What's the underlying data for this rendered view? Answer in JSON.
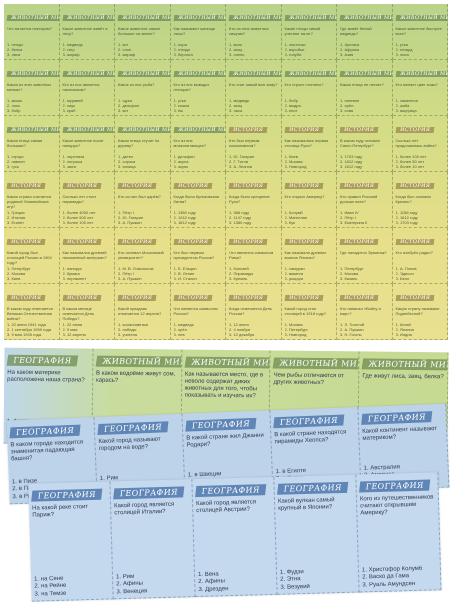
{
  "sheets": {
    "top": {
      "cells": [
        {
          "title": "ЖИВОТНЫЙ МИР",
          "question": "Что питается нектаром?",
          "answers": [
            "1. птицы",
            "2. белка",
            "3. лиса"
          ]
        },
        {
          "title": "ЖИВОТНЫЙ МИР",
          "question": "Какое животное живёт в лесу?",
          "answers": [
            "1. медведь",
            "2. тигр",
            "3. жираф"
          ]
        },
        {
          "title": "ЖИВОТНЫЙ МИР",
          "question": "Какое животное самое большое на земле?",
          "answers": [
            "1. кит",
            "2. слон",
            "3. жираф"
          ]
        },
        {
          "title": "ЖИВОТНЫЙ МИР",
          "question": "Как называют жилище лисы?",
          "answers": [
            "1. нора",
            "2. гнездо",
            "3. берлога"
          ]
        },
        {
          "title": "ЖИВОТНЫЙ МИР",
          "question": "Кто из этих животных хищник?",
          "answers": [
            "1. волк",
            "2. заяц",
            "3. олень"
          ]
        },
        {
          "title": "ЖИВОТНЫЙ МИР",
          "question": "Какие птицы зимой улетают на юг?",
          "answers": [
            "1. ласточки",
            "2. воробьи",
            "3. голуби"
          ]
        },
        {
          "title": "ЖИВОТНЫЙ МИР",
          "question": "Где живёт белый медведь?",
          "answers": [
            "1. Арктика",
            "2. Африка",
            "3. Азия"
          ]
        },
        {
          "title": "ЖИВОТНЫЙ МИР",
          "question": "Какое животное быстрее всех?",
          "answers": [
            "1. утка",
            "2. гепард",
            "3. лиса"
          ]
        },
        {
          "title": "ЖИВОТНЫЙ МИР",
          "question": "Какая из этих животных мелких?",
          "answers": [
            "1. мышь",
            "2. лось",
            "3. бобр"
          ]
        },
        {
          "title": "ЖИВОТНЫЙ МИР",
          "question": "Кто из них является насекомым?",
          "answers": [
            "1. муравей",
            "2. паук",
            "3. краб"
          ]
        },
        {
          "title": "ЖИВОТНЫЙ МИР",
          "question": "Какое из них рыба?",
          "answers": [
            "1. щука",
            "2. дельфин",
            "3. кит"
          ]
        },
        {
          "title": "ЖИВОТНЫЙ МИР",
          "question": "Кто из них выводит птенцов?",
          "answers": [
            "1. утка",
            "2. кошка",
            "3. ёж"
          ]
        },
        {
          "title": "ЖИВОТНЫЙ МИР",
          "question": "Кто спит зимой всю зиму?",
          "answers": [
            "1. медведь",
            "2. заяц",
            "3. лиса"
          ]
        },
        {
          "title": "ЖИВОТНЫЙ МИР",
          "question": "Кто строит плотины?",
          "answers": [
            "1. бобр",
            "2. выдра",
            "3. енот"
          ]
        },
        {
          "title": "ЖИВОТНЫЙ МИР",
          "question": "Какая птица не летает?",
          "answers": [
            "1. пингвин",
            "2. орёл",
            "3. сова"
          ]
        },
        {
          "title": "ЖИВОТНЫЙ МИР",
          "question": "Кто меняет цвет кожи?",
          "answers": [
            "1. хамелеон",
            "2. жаба",
            "3. ящерица"
          ]
        },
        {
          "title": "ЖИВОТНЫЙ МИР",
          "question": "Какая птица самая большая?",
          "answers": [
            "1. страус",
            "2. павлин",
            "3. гусь"
          ]
        },
        {
          "title": "ЖИВОТНЫЙ МИР",
          "question": "Какое животное носит панцирь?",
          "answers": [
            "1. черепаха",
            "2. лягушка",
            "3. змея"
          ]
        },
        {
          "title": "ЖИВОТНЫЙ МИР",
          "question": "Какая птица стучит по дереву?",
          "answers": [
            "1. дятел",
            "2. сорока",
            "3. синица"
          ]
        },
        {
          "title": "ЖИВОТНЫЙ МИР",
          "question": "Кто из них млекопитающее?",
          "answers": [
            "1. дельфин",
            "2. акула",
            "3. окунь"
          ]
        },
        {
          "title": "ИСТОРИЯ",
          "question": "Кто был первым космонавтом?",
          "answers": [
            "1. Ю. Гагарин",
            "2. Г. Титов",
            "3. А. Леонов"
          ]
        },
        {
          "title": "ИСТОРИЯ",
          "question": "Как называлась первая столица Руси?",
          "answers": [
            "1. Киев",
            "2. Москва",
            "3. Новгород"
          ]
        },
        {
          "title": "ИСТОРИЯ",
          "question": "В каком году основан Санкт-Петербург?",
          "answers": [
            "1. 1703 году",
            "2. 1812 году",
            "3. 1612 году"
          ]
        },
        {
          "title": "ИСТОРИЯ",
          "question": "Сколько лет продолжалась война?",
          "answers": [
            "1. более 100 лет",
            "2. более 50 лет",
            "3. более 10 лет"
          ]
        },
        {
          "title": "ИСТОРИЯ",
          "question": "Какая страна считается родиной Олимпийских игр?",
          "answers": [
            "1. Греция",
            "2. Италия",
            "3. Египет"
          ]
        },
        {
          "title": "ИСТОРИЯ",
          "question": "Сколько лет стоят пирамиды?",
          "answers": [
            "1. более 4000 лет",
            "2. более 500 лет",
            "3. более 100 лет"
          ]
        },
        {
          "title": "ИСТОРИЯ",
          "question": "Кто из них был царём?",
          "answers": [
            "1. Пётр I",
            "2. Ю. Гагарин",
            "3. А. Пушкин"
          ]
        },
        {
          "title": "ИСТОРИЯ",
          "question": "Когда была Куликовская битва?",
          "answers": [
            "1. 1380 году",
            "2. 1242 году",
            "3. 1812 году"
          ]
        },
        {
          "title": "ИСТОРИЯ",
          "question": "Когда было крещение Руси?",
          "answers": [
            "1. 988 году",
            "2. 1147 году",
            "3. 1380 году"
          ]
        },
        {
          "title": "ИСТОРИЯ",
          "question": "Кто открыл Америку?",
          "answers": [
            "1. Колумб",
            "2. Магеллан",
            "3. Кук"
          ]
        },
        {
          "title": "ИСТОРИЯ",
          "question": "Кто правил Россией дольше всех?",
          "answers": [
            "1. Иван IV",
            "2. Пётр I",
            "3. Екатерина II"
          ]
        },
        {
          "title": "ИСТОРИЯ",
          "question": "Когда был основан Кремль?",
          "answers": [
            "1. 1156 году",
            "2. 1612 году",
            "3. 1703 году"
          ]
        },
        {
          "title": "ИСТОРИЯ",
          "question": "Какой город был столицей России в 1904 году?",
          "answers": [
            "1. Петербург",
            "2. Москва",
            "3. Киев"
          ]
        },
        {
          "title": "ИСТОРИЯ",
          "question": "Как назывался древний письменный материал?",
          "answers": [
            "1. папирус",
            "2. бумага",
            "3. пергамент"
          ]
        },
        {
          "title": "ИСТОРИЯ",
          "question": "Кто основал Московский университет?",
          "answers": [
            "1. М. В. Ломоносов",
            "2. Пётр I",
            "3. А. Пушкин"
          ]
        },
        {
          "title": "ИСТОРИЯ",
          "question": "Кто был первым президентом России?",
          "answers": [
            "1. Б. Ельцин",
            "2. В. Ленин",
            "3. И. Сталин"
          ]
        },
        {
          "title": "ИСТОРИЯ",
          "question": "Что является символом Рима?",
          "answers": [
            "1. Колизей",
            "2. Пирамиды",
            "3. Кремль"
          ]
        },
        {
          "title": "ИСТОРИЯ",
          "question": "Как называли древних воинов Японии?",
          "answers": [
            "1. самураи",
            "2. викинги",
            "3. рыцари"
          ]
        },
        {
          "title": "ИСТОРИЯ",
          "question": "Где находится Эрмитаж?",
          "answers": [
            "1. Петербург",
            "2. Москва",
            "3. Казань"
          ]
        },
        {
          "title": "ИСТОРИЯ",
          "question": "Кто изобрёл радио?",
          "answers": [
            "1. А. Попов",
            "2. Эдисон",
            "3. Белл"
          ]
        },
        {
          "title": "ИСТОРИЯ",
          "question": "В каком году отмечается Великая Отечественная война?",
          "answers": [
            "1. 22 июня 1941 года",
            "2. 1 сентября 1939 года",
            "3. 9 мая 1945 года"
          ]
        },
        {
          "title": "ИСТОРИЯ",
          "question": "В каком месяце отмечается День Победы?",
          "answers": [
            "1. 22 июня",
            "2. 9 мая",
            "3. 12 апреля"
          ]
        },
        {
          "title": "ИСТОРИЯ",
          "question": "Какой праздник отмечается 12 апреля?",
          "answers": [
            "1. космонавтики",
            "2. победы",
            "3. учителя"
          ]
        },
        {
          "title": "ИСТОРИЯ",
          "question": "Что является символом России?",
          "answers": [
            "1. медведь",
            "2. орёл",
            "3. лев"
          ]
        },
        {
          "title": "ИСТОРИЯ",
          "question": "Когда отмечается День России?",
          "answers": [
            "1. 12 июня",
            "2. 4 ноября",
            "3. 12 декабря"
          ]
        },
        {
          "title": "ИСТОРИЯ",
          "question": "Какой город стал столицей в 1918 году?",
          "answers": [
            "1. Москва",
            "2. Петербург",
            "3. Новгород"
          ]
        },
        {
          "title": "ИСТОРИЯ",
          "question": "Кто написал «Войну и мир»?",
          "answers": [
            "1. Л. Толстой",
            "2. А. Пушкин",
            "3. Н. Гоголь"
          ]
        },
        {
          "title": "ИСТОРИЯ",
          "question": "Какую страну называют Поднебесной?",
          "answers": [
            "1. Китай",
            "2. Япония",
            "3. Индия"
          ]
        }
      ]
    },
    "middle": {
      "cells": [
        {
          "title": "ГЕОГРАФИЯ",
          "question": "На каком материке расположена наша страна?",
          "answers": [
            "1. Австралия",
            "2. Африка",
            "3. Евразия"
          ]
        },
        {
          "title": "ЖИВОТНЫЙ МИР",
          "question": "В каком водоёме живут сом, карась?",
          "answers": [
            "1. в озере",
            "2. в море",
            "3. в океане"
          ]
        },
        {
          "title": "ЖИВОТНЫЙ МИР",
          "question": "Как называется место, где в неволе содержат диких животных для того, чтобы показывать и изучать их?",
          "answers": [
            "1. лес",
            "2. зоопарк",
            "3. заповедник"
          ]
        },
        {
          "title": "ЖИВОТНЫЙ МИР",
          "question": "Чем рыбы отличаются от других животных?",
          "answers": [
            "1. умеют плавать",
            "2. тело покрыто чешуёй",
            "3. все ответы"
          ]
        },
        {
          "title": "ЖИВОТНЫЙ МИР",
          "question": "Где живут лиса, заяц, белка?",
          "answers": [
            "1. в доме",
            "2. в лесу",
            "3. в пруду"
          ]
        }
      ]
    },
    "bottom1": {
      "cells": [
        {
          "title": "ГЕОГРАФИЯ",
          "question": "В каком городе находится знаменитая падающая башня?",
          "answers": [
            "1. в Пизе",
            "2. в Париже",
            "3. в Риме"
          ]
        },
        {
          "title": "ГЕОГРАФИЯ",
          "question": "Какой город называют городом на воде?",
          "answers": [
            "1. Рим",
            "2. Афины",
            "3. Венеция"
          ]
        },
        {
          "title": "ГЕОГРАФИЯ",
          "question": "В какой стране жил Джанни Родари?",
          "answers": [
            "1. в Швеции",
            "2. в Италии",
            "3. в Греции"
          ]
        },
        {
          "title": "ГЕОГРАФИЯ",
          "question": "В какой стране находятся пирамиды Хеопса?",
          "answers": [
            "1. в Египте",
            "2. в Китае",
            "3. в Индии"
          ]
        },
        {
          "title": "ГЕОГРАФИЯ",
          "question": "Какой континент называют материком?",
          "answers": [
            "1. Австралия",
            "2. Америка",
            "3. Африка"
          ]
        }
      ]
    },
    "bottom2": {
      "cells": [
        {
          "title": "ГЕОГРАФИЯ",
          "question": "На какой реке стоит Париж?",
          "answers": [
            "1. на Сене",
            "2. на Рейне",
            "3. на Темзе"
          ]
        },
        {
          "title": "ГЕОГРАФИЯ",
          "question": "Какой город является столицей Италии?",
          "answers": [
            "1. Рим",
            "2. Афины",
            "3. Венеция"
          ]
        },
        {
          "title": "ГЕОГРАФИЯ",
          "question": "Какой город является столицей Австрии?",
          "answers": [
            "1. Вена",
            "2. Афины",
            "3. Дрезден"
          ]
        },
        {
          "title": "ГЕОГРАФИЯ",
          "question": "Какой вулкан самый крупный в Японии?",
          "answers": [
            "1. Фудзи",
            "2. Этна",
            "3. Везувий"
          ]
        },
        {
          "title": "ГЕОГРАФИЯ",
          "question": "Кого из путешественников считают открывшим Америку?",
          "answers": [
            "1. Христофор Колумб",
            "2. Васко да Гама",
            "3. Руаль Амундсен"
          ]
        }
      ]
    }
  }
}
